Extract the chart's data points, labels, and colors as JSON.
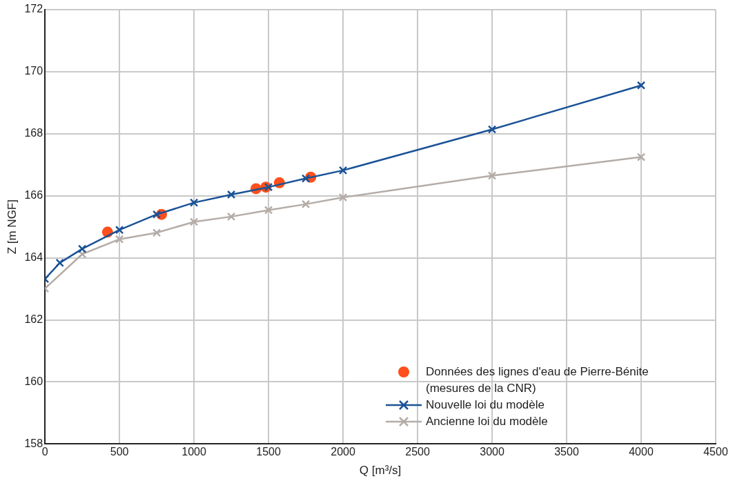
{
  "chart_data": {
    "type": "line",
    "xlabel": "Q [m³/s]",
    "ylabel": "Z [m NGF]",
    "xlim": [
      0,
      4500
    ],
    "xticks": [
      0,
      500,
      1000,
      1500,
      2000,
      2500,
      3000,
      3500,
      4000,
      4500
    ],
    "ylim": [
      158,
      172
    ],
    "yticks": [
      158,
      160,
      162,
      164,
      166,
      168,
      170,
      172
    ],
    "grid": true,
    "legend": "bottom right",
    "series": [
      {
        "name": "Données des lignes d'eau de Pierre-Bénite (mesures de la CNR)",
        "type": "scatter",
        "marker": "circle",
        "color": "#ff4f1c",
        "x": [
          420,
          782,
          1416,
          1482,
          1573,
          1783
        ],
        "values": [
          164.83,
          165.4,
          166.23,
          166.28,
          166.42,
          166.6
        ]
      },
      {
        "name": "Nouvelle loi du modèle",
        "type": "line",
        "marker": "cross",
        "color": "#1a5296",
        "x": [
          0,
          100,
          250,
          500,
          750,
          1000,
          1250,
          1500,
          1750,
          2000,
          3000,
          4000
        ],
        "values": [
          163.32,
          163.84,
          164.29,
          164.9,
          165.4,
          165.78,
          166.04,
          166.28,
          166.56,
          166.82,
          168.14,
          169.56
        ]
      },
      {
        "name": "Ancienne loi du modèle",
        "type": "line",
        "marker": "cross",
        "color": "#b4aca7",
        "x": [
          0,
          250,
          500,
          750,
          1000,
          1250,
          1500,
          1750,
          2000,
          3000,
          4000
        ],
        "values": [
          163.01,
          164.12,
          164.6,
          164.81,
          165.16,
          165.33,
          165.54,
          165.73,
          165.95,
          166.65,
          167.25
        ]
      }
    ]
  }
}
